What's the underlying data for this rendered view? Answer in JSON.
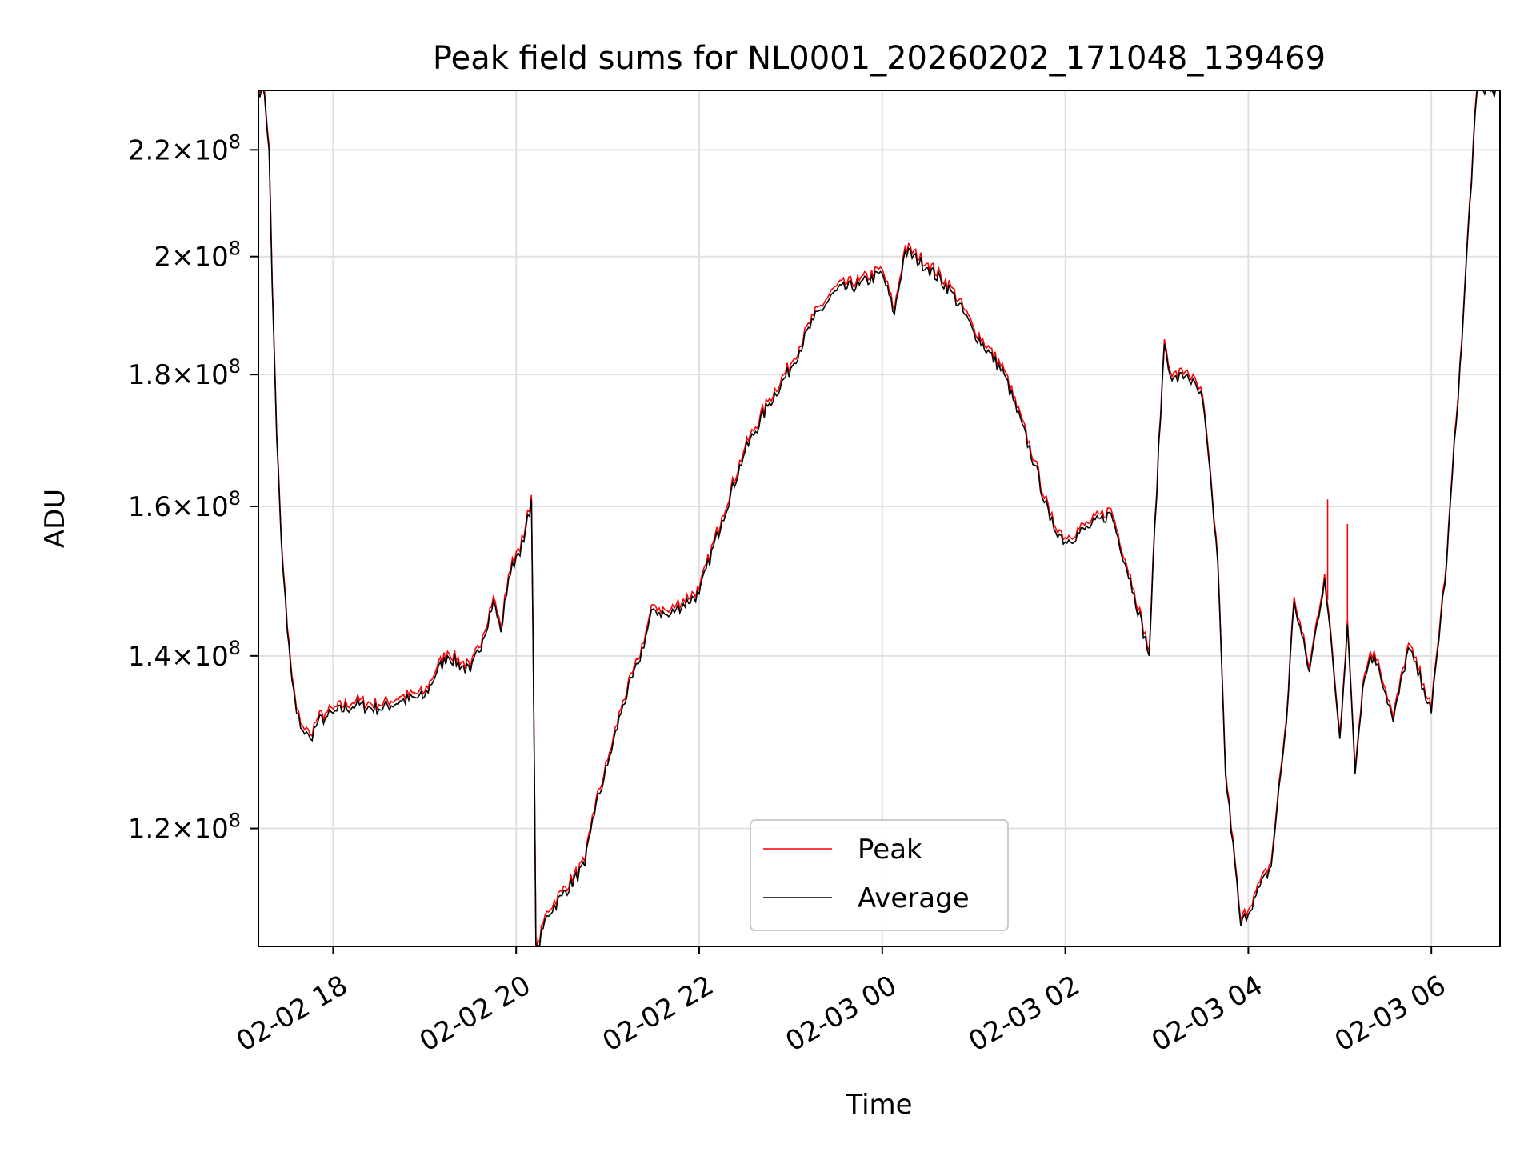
{
  "chart_data": {
    "type": "line",
    "title": "Peak field sums for NL0001_20260202_171048_139469",
    "xlabel": "Time",
    "ylabel": "ADU",
    "yscale": "log",
    "xlim": [
      "2026-02-02 17:11",
      "2026-02-03 06:45"
    ],
    "ylim": [
      108000000,
      232000000
    ],
    "x_ticks": [
      "02-02 18",
      "02-02 20",
      "02-02 22",
      "02-03 00",
      "02-03 02",
      "02-03 04",
      "02-03 06"
    ],
    "y_ticks": [
      {
        "value": 120000000,
        "mantissa": "1.2",
        "base": "10",
        "exp": "8"
      },
      {
        "value": 140000000,
        "mantissa": "1.4",
        "base": "10",
        "exp": "8"
      },
      {
        "value": 160000000,
        "mantissa": "1.6",
        "base": "10",
        "exp": "8"
      },
      {
        "value": 180000000,
        "mantissa": "1.8",
        "base": "10",
        "exp": "8"
      },
      {
        "value": 200000000,
        "mantissa": "2",
        "base": "10",
        "exp": "8"
      },
      {
        "value": 220000000,
        "mantissa": "2.2",
        "base": "10",
        "exp": "8"
      }
    ],
    "grid": true,
    "legend_position": "bottom-center",
    "series": [
      {
        "name": "Peak",
        "color": "#ff0000"
      },
      {
        "name": "Average",
        "color": "#000000"
      }
    ],
    "x": [
      "2026-02-02 17:11",
      "2026-02-02 17:13",
      "2026-02-02 17:15",
      "2026-02-02 17:18",
      "2026-02-02 17:20",
      "2026-02-02 17:23",
      "2026-02-02 17:26",
      "2026-02-02 17:30",
      "2026-02-02 17:33",
      "2026-02-02 17:36",
      "2026-02-02 17:40",
      "2026-02-02 17:45",
      "2026-02-02 17:50",
      "2026-02-02 17:55",
      "2026-02-02 18:00",
      "2026-02-02 18:15",
      "2026-02-02 18:30",
      "2026-02-02 18:45",
      "2026-02-02 19:00",
      "2026-02-02 19:08",
      "2026-02-02 19:15",
      "2026-02-02 19:30",
      "2026-02-02 19:38",
      "2026-02-02 19:45",
      "2026-02-02 19:50",
      "2026-02-02 19:55",
      "2026-02-02 20:00",
      "2026-02-02 20:05",
      "2026-02-02 20:10",
      "2026-02-02 20:13",
      "2026-02-02 20:20",
      "2026-02-02 20:30",
      "2026-02-02 20:45",
      "2026-02-02 20:50",
      "2026-02-02 21:00",
      "2026-02-02 21:10",
      "2026-02-02 21:20",
      "2026-02-02 21:30",
      "2026-02-02 21:40",
      "2026-02-02 21:45",
      "2026-02-02 22:00",
      "2026-02-02 22:15",
      "2026-02-02 22:30",
      "2026-02-02 22:45",
      "2026-02-02 23:00",
      "2026-02-02 23:15",
      "2026-02-02 23:30",
      "2026-02-02 23:45",
      "2026-02-03 00:00",
      "2026-02-03 00:08",
      "2026-02-03 00:15",
      "2026-02-03 00:30",
      "2026-02-03 00:45",
      "2026-02-03 01:00",
      "2026-02-03 01:20",
      "2026-02-03 01:40",
      "2026-02-03 01:50",
      "2026-02-03 02:00",
      "2026-02-03 02:15",
      "2026-02-03 02:30",
      "2026-02-03 02:45",
      "2026-02-03 02:55",
      "2026-02-03 03:05",
      "2026-02-03 03:10",
      "2026-02-03 03:20",
      "2026-02-03 03:30",
      "2026-02-03 03:40",
      "2026-02-03 03:45",
      "2026-02-03 03:55",
      "2026-02-03 04:05",
      "2026-02-03 04:15",
      "2026-02-03 04:25",
      "2026-02-03 04:30",
      "2026-02-03 04:40",
      "2026-02-03 04:50",
      "2026-02-03 05:00",
      "2026-02-03 05:05",
      "2026-02-03 05:10",
      "2026-02-03 05:15",
      "2026-02-03 05:20",
      "2026-02-03 05:25",
      "2026-02-03 05:35",
      "2026-02-03 05:45",
      "2026-02-03 05:55",
      "2026-02-03 06:00",
      "2026-02-03 06:10",
      "2026-02-03 06:20",
      "2026-02-03 06:30",
      "2026-02-03 06:40",
      "2026-02-03 06:45"
    ],
    "values": [
      232000000,
      232000000,
      231000000,
      220000000,
      195000000,
      170000000,
      155000000,
      143000000,
      137000000,
      133000000,
      131000000,
      130000000,
      132000000,
      132500000,
      133000000,
      134000000,
      133500000,
      134500000,
      135000000,
      138000000,
      140000000,
      138000000,
      142000000,
      147000000,
      143000000,
      150000000,
      153000000,
      155000000,
      161000000,
      107000000,
      111000000,
      113000000,
      116000000,
      121000000,
      127000000,
      134000000,
      139000000,
      146000000,
      145000000,
      146000000,
      148000000,
      158000000,
      168000000,
      175000000,
      181000000,
      189000000,
      194000000,
      195000000,
      197000000,
      190000000,
      201000000,
      198000000,
      194000000,
      187000000,
      180000000,
      166000000,
      158000000,
      155000000,
      157000000,
      159000000,
      148000000,
      140000000,
      185000000,
      179000000,
      180000000,
      176000000,
      152000000,
      126000000,
      110000000,
      113000000,
      116000000,
      132000000,
      147000000,
      138000000,
      150000000,
      130000000,
      144000000,
      126000000,
      136000000,
      140000000,
      139000000,
      132000000,
      141000000,
      136000000,
      133000000,
      152000000,
      185000000,
      232000000,
      232000000,
      232000000
    ],
    "peak_spikes": [
      {
        "x": "2026-02-03 04:52",
        "value": 161000000
      },
      {
        "x": "2026-02-03 05:05",
        "value": 157500000
      }
    ]
  }
}
